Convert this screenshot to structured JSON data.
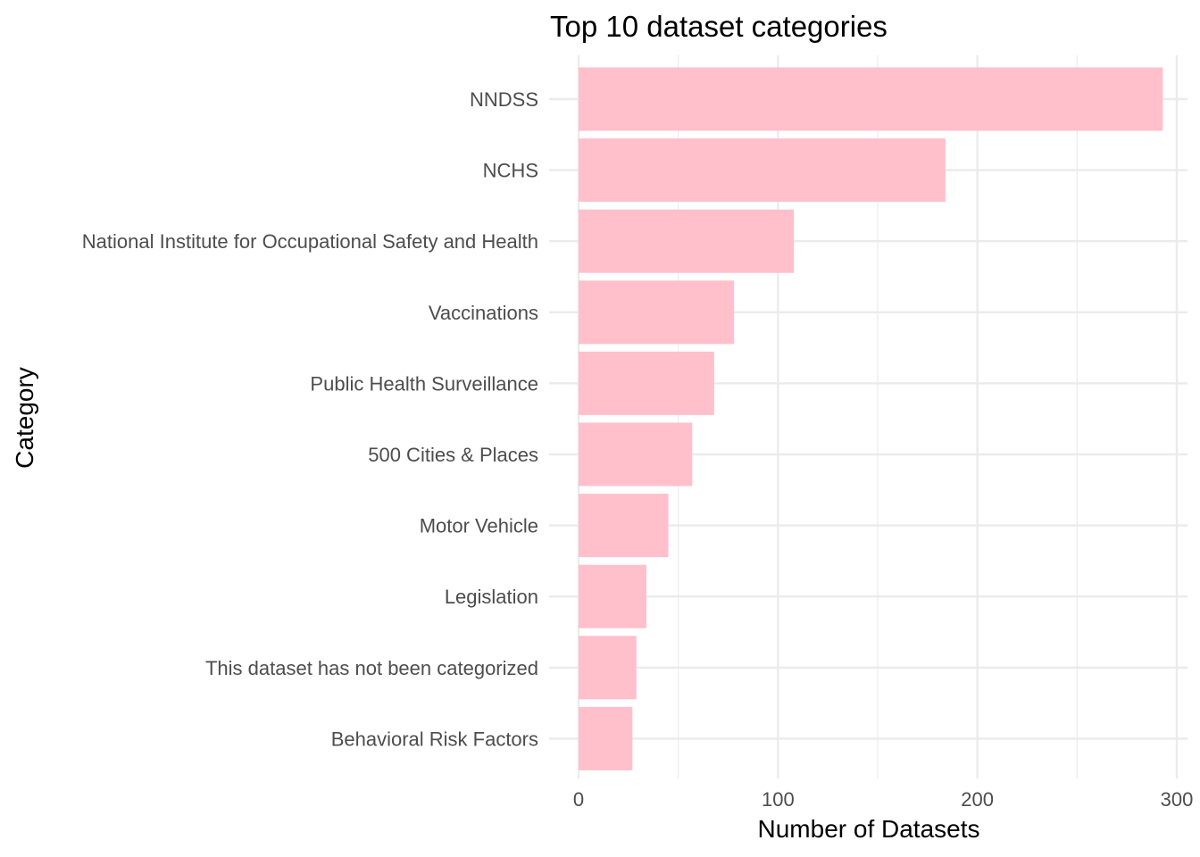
{
  "chart_data": {
    "type": "bar",
    "orientation": "horizontal",
    "title": "Top 10 dataset categories",
    "xlabel": "Number of Datasets",
    "ylabel": "Category",
    "categories": [
      "NNDSS",
      "NCHS",
      "National Institute for Occupational Safety and Health",
      "Vaccinations",
      "Public Health Surveillance",
      "500 Cities & Places",
      "Motor Vehicle",
      "Legislation",
      "This dataset has not been categorized",
      "Behavioral Risk Factors"
    ],
    "values": [
      293,
      184,
      108,
      78,
      68,
      57,
      45,
      34,
      29,
      27
    ],
    "xlim": [
      0,
      307
    ],
    "x_ticks": [
      0,
      100,
      200,
      300
    ],
    "x_minor_ticks": [
      50,
      150,
      250
    ],
    "grid": true,
    "legend": "none",
    "bar_color": "#ffc0cb",
    "grid_color": "#ebebeb"
  }
}
